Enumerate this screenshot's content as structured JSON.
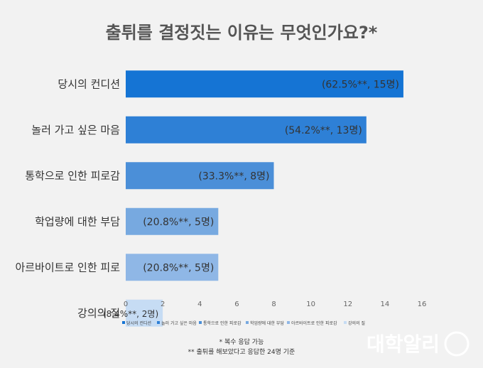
{
  "chart_data": {
    "type": "bar",
    "orientation": "horizontal",
    "title": "출튀를 결정짓는 이유는 무엇인가요?*",
    "categories": [
      "당시의 컨디션",
      "놀러 가고 싶은 마음",
      "통학으로 인한 피로감",
      "학업량에 대한 부담",
      "아르바이트로 인한 피로",
      "강의의 질"
    ],
    "values": [
      15,
      13,
      8,
      5,
      5,
      2
    ],
    "data_labels": [
      "(62.5%**, 15명)",
      "(54.2%**, 13명)",
      "(33.3%**, 8명)",
      "(20.8%**, 5명)",
      "(20.8%**, 5명)",
      "(8.4%**, 2명)"
    ],
    "xlim": [
      0,
      16
    ],
    "xticks": [
      "0",
      "2",
      "4",
      "6",
      "8",
      "10",
      "12",
      "14",
      "16"
    ],
    "grid": false,
    "legend_position": "bottom",
    "legend": [
      "당시의 컨디션",
      "놀러 가고 싶은 마음",
      "통학으로 인한 피로감",
      "학업량에 대한 부담",
      "아르바이트로 인한 피로감",
      "강의의 질"
    ],
    "colors": [
      "#1574d4",
      "#2e80d6",
      "#4b8fd8",
      "#77a9e0",
      "#8fb7e6",
      "#c6dcf4"
    ],
    "notes": [
      "* 복수 응답 가능",
      "** 출튀를 해보았다고 응답한  24명 기준"
    ]
  },
  "brand": {
    "logo_text": "대학알리"
  }
}
